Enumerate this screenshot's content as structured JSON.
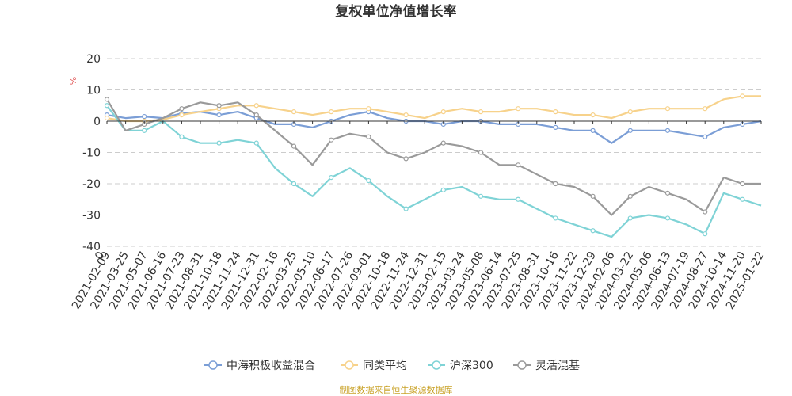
{
  "chart_data": {
    "type": "line",
    "title": "复权单位净值增长率",
    "ylabel": "%",
    "ylim": [
      -40,
      20
    ],
    "yticks": [
      20,
      10,
      0,
      -10,
      -20,
      -30,
      -40
    ],
    "x_origin_label": "0",
    "grid": true,
    "legend_position": "bottom",
    "source": "制图数据来自恒生聚源数据库",
    "categories": [
      "2021-02-09",
      "2021-03-25",
      "2021-05-07",
      "2021-06-16",
      "2021-07-23",
      "2021-08-31",
      "2021-10-18",
      "2021-11-24",
      "2021-12-31",
      "2022-02-16",
      "2022-03-25",
      "2022-05-10",
      "2022-06-17",
      "2022-07-26",
      "2022-09-01",
      "2022-10-18",
      "2022-11-24",
      "2022-12-31",
      "2023-02-15",
      "2023-03-24",
      "2023-05-08",
      "2023-06-14",
      "2023-07-25",
      "2023-08-31",
      "2023-10-16",
      "2023-11-22",
      "2023-12-29",
      "2024-02-06",
      "2024-03-22",
      "2024-05-06",
      "2024-06-13",
      "2024-07-19",
      "2024-08-27",
      "2024-10-14",
      "2024-11-20",
      "2025-01-22"
    ],
    "series": [
      {
        "name": "中海积极收益混合",
        "color": "#7b9ed6",
        "values": [
          2,
          1,
          1.5,
          1,
          2.5,
          3,
          2,
          3,
          1,
          -1,
          -1,
          -2,
          0,
          2,
          3,
          1,
          0,
          0,
          -1,
          0,
          0,
          -1,
          -1,
          -1,
          -2,
          -3,
          -3,
          -7,
          -3,
          -3,
          -3,
          -4,
          -5,
          -2,
          -1,
          0
        ]
      },
      {
        "name": "同类平均",
        "color": "#f7d28b",
        "values": [
          1,
          0,
          0,
          0.5,
          2,
          3,
          4,
          5,
          5,
          4,
          3,
          2,
          3,
          4,
          4,
          3,
          2,
          1,
          3,
          4,
          3,
          3,
          4,
          4,
          3,
          2,
          2,
          1,
          3,
          4,
          4,
          4,
          4,
          7,
          8,
          8
        ]
      },
      {
        "name": "沪深300",
        "color": "#7fd3d6",
        "values": [
          5,
          -3,
          -3,
          0,
          -5,
          -7,
          -7,
          -6,
          -7,
          -15,
          -20,
          -24,
          -18,
          -15,
          -19,
          -24,
          -28,
          -25,
          -22,
          -21,
          -24,
          -25,
          -25,
          -28,
          -31,
          -33,
          -35,
          -37,
          -31,
          -30,
          -31,
          -33,
          -36,
          -23,
          -25,
          -27
        ]
      },
      {
        "name": "灵活混基",
        "color": "#9a9a9a",
        "values": [
          7,
          -3,
          -1,
          1,
          4,
          6,
          5,
          6,
          2,
          -3,
          -8,
          -14,
          -6,
          -4,
          -5,
          -10,
          -12,
          -10,
          -7,
          -8,
          -10,
          -14,
          -14,
          -17,
          -20,
          -21,
          -24,
          -30,
          -24,
          -21,
          -23,
          -25,
          -29,
          -18,
          -20,
          -20
        ]
      }
    ]
  }
}
